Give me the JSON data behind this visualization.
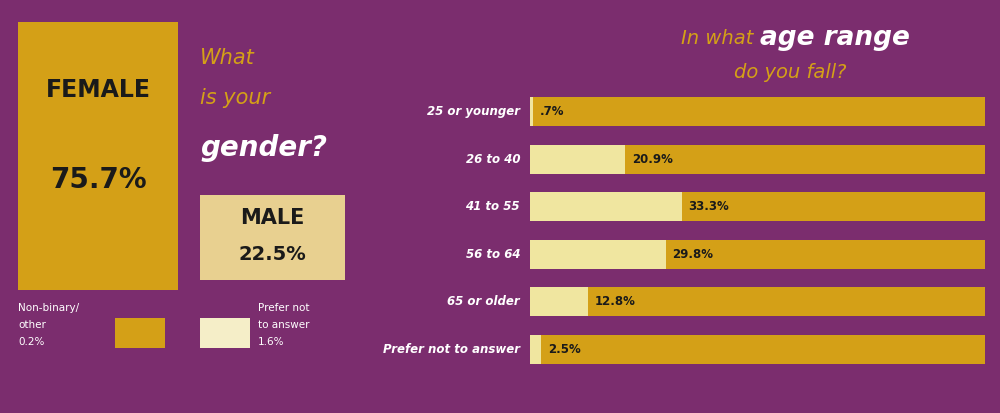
{
  "bg_color": "#7B2D6E",
  "gold_color": "#D4A017",
  "cream_color": "#F0E6A0",
  "cream_light": "#F5EEC8",
  "white_color": "#FFFFFF",
  "black_color": "#1A1A1A",
  "female_label": "FEMALE",
  "female_pct": "75.7%",
  "female_color": "#D4A017",
  "male_label": "MALE",
  "male_pct": "22.5%",
  "male_color": "#E8D090",
  "age_categories": [
    "25 or younger",
    "26 to 40",
    "41 to 55",
    "56 to 64",
    "65 or older",
    "Prefer not to answer"
  ],
  "age_values": [
    0.7,
    20.9,
    33.3,
    29.8,
    12.8,
    2.5
  ],
  "bar_cream_color": "#F0E6A0",
  "bar_gold_color": "#D4A017",
  "figsize": [
    10.0,
    4.13
  ],
  "dpi": 100
}
